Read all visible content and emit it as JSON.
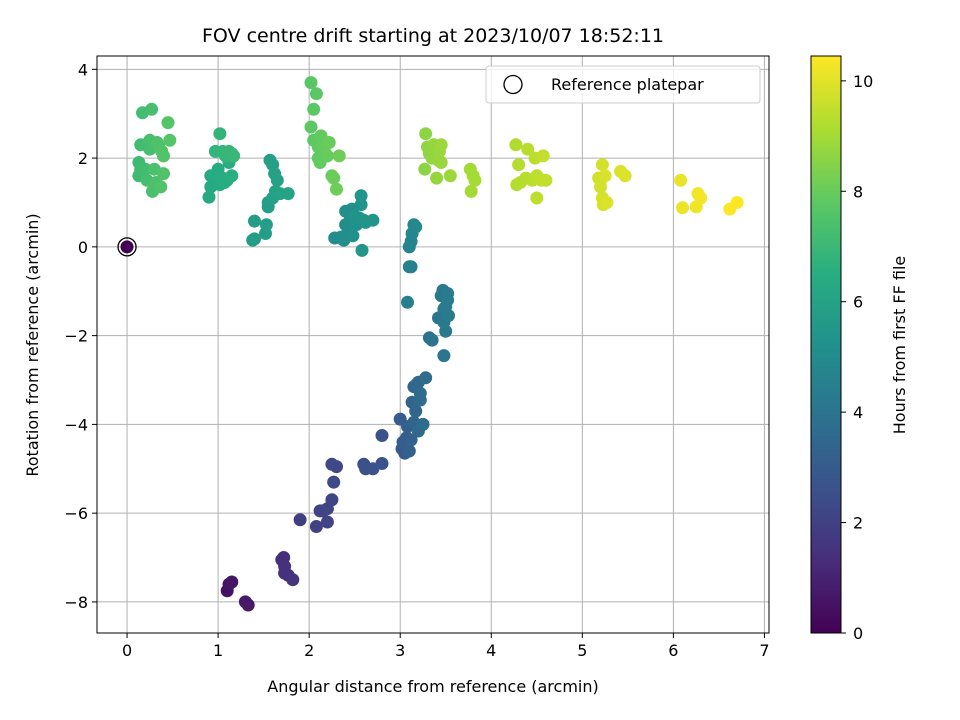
{
  "chart_data": {
    "type": "scatter",
    "title": "FOV centre drift starting at 2023/10/07 18:52:11",
    "xlabel": "Angular distance from reference (arcmin)",
    "ylabel": "Rotation from reference (arcmin)",
    "xlim": [
      -0.33,
      7.05
    ],
    "ylim": [
      -8.7,
      4.3
    ],
    "xticks": [
      0,
      1,
      2,
      3,
      4,
      5,
      6,
      7
    ],
    "yticks": [
      -8,
      -6,
      -4,
      -2,
      0,
      2,
      4
    ],
    "xtick_labels": [
      "0",
      "1",
      "2",
      "3",
      "4",
      "5",
      "6",
      "7"
    ],
    "ytick_labels": [
      "−8",
      "−6",
      "−4",
      "−2",
      "0",
      "2",
      "4"
    ],
    "grid": true,
    "legend": {
      "placement": "top-right",
      "entries": [
        "Reference platepar"
      ]
    },
    "reference_point": {
      "x": 0,
      "y": 0,
      "label": "Reference platepar"
    },
    "colorbar": {
      "label": "Hours from first FF file",
      "colormap": "viridis",
      "range": [
        0,
        10.45
      ],
      "ticks": [
        0,
        2,
        4,
        6,
        8,
        10
      ],
      "tick_labels": [
        "0",
        "2",
        "4",
        "6",
        "8",
        "10"
      ]
    },
    "points": [
      {
        "x": 0.0,
        "y": 0.0,
        "c": 0.0
      },
      {
        "x": 1.1,
        "y": -7.75,
        "c": 0.5
      },
      {
        "x": 1.12,
        "y": -7.6,
        "c": 0.55
      },
      {
        "x": 1.15,
        "y": -7.55,
        "c": 0.6
      },
      {
        "x": 1.3,
        "y": -8.0,
        "c": 0.7
      },
      {
        "x": 1.33,
        "y": -8.07,
        "c": 0.72
      },
      {
        "x": 1.7,
        "y": -7.05,
        "c": 1.4
      },
      {
        "x": 1.72,
        "y": -7.0,
        "c": 1.42
      },
      {
        "x": 1.73,
        "y": -7.2,
        "c": 1.45
      },
      {
        "x": 1.73,
        "y": -7.35,
        "c": 1.48
      },
      {
        "x": 1.77,
        "y": -7.4,
        "c": 1.5
      },
      {
        "x": 1.82,
        "y": -7.5,
        "c": 1.55
      },
      {
        "x": 1.9,
        "y": -6.15,
        "c": 1.9
      },
      {
        "x": 2.08,
        "y": -6.3,
        "c": 2.0
      },
      {
        "x": 2.12,
        "y": -5.95,
        "c": 2.05
      },
      {
        "x": 2.15,
        "y": -5.95,
        "c": 2.1
      },
      {
        "x": 2.2,
        "y": -6.2,
        "c": 2.12
      },
      {
        "x": 2.2,
        "y": -5.9,
        "c": 2.15
      },
      {
        "x": 2.25,
        "y": -5.7,
        "c": 2.2
      },
      {
        "x": 2.25,
        "y": -4.9,
        "c": 2.3
      },
      {
        "x": 2.3,
        "y": -4.95,
        "c": 2.32
      },
      {
        "x": 2.27,
        "y": -5.3,
        "c": 2.35
      },
      {
        "x": 2.6,
        "y": -4.9,
        "c": 2.5
      },
      {
        "x": 2.62,
        "y": -5.0,
        "c": 2.55
      },
      {
        "x": 2.7,
        "y": -5.0,
        "c": 2.6
      },
      {
        "x": 2.8,
        "y": -4.88,
        "c": 2.65
      },
      {
        "x": 2.8,
        "y": -4.25,
        "c": 2.7
      },
      {
        "x": 3.0,
        "y": -3.88,
        "c": 3.0
      },
      {
        "x": 3.02,
        "y": -4.55,
        "c": 2.9
      },
      {
        "x": 3.03,
        "y": -4.4,
        "c": 3.05
      },
      {
        "x": 3.05,
        "y": -4.65,
        "c": 2.95
      },
      {
        "x": 3.07,
        "y": -4.3,
        "c": 3.1
      },
      {
        "x": 3.08,
        "y": -4.05,
        "c": 3.15
      },
      {
        "x": 3.1,
        "y": -4.6,
        "c": 3.2
      },
      {
        "x": 3.12,
        "y": -4.35,
        "c": 3.25
      },
      {
        "x": 3.13,
        "y": -3.5,
        "c": 3.3
      },
      {
        "x": 3.15,
        "y": -3.15,
        "c": 3.35
      },
      {
        "x": 3.15,
        "y": -3.95,
        "c": 3.4
      },
      {
        "x": 3.17,
        "y": -3.7,
        "c": 3.42
      },
      {
        "x": 3.18,
        "y": -3.1,
        "c": 3.45
      },
      {
        "x": 3.2,
        "y": -3.05,
        "c": 3.5
      },
      {
        "x": 3.2,
        "y": -4.15,
        "c": 3.55
      },
      {
        "x": 3.22,
        "y": -3.45,
        "c": 3.6
      },
      {
        "x": 3.22,
        "y": -3.3,
        "c": 3.62
      },
      {
        "x": 3.25,
        "y": -4.0,
        "c": 3.65
      },
      {
        "x": 3.28,
        "y": -2.95,
        "c": 3.7
      },
      {
        "x": 3.32,
        "y": -2.05,
        "c": 3.9
      },
      {
        "x": 3.35,
        "y": -2.1,
        "c": 3.95
      },
      {
        "x": 3.42,
        "y": -1.6,
        "c": 4.0
      },
      {
        "x": 3.45,
        "y": -1.1,
        "c": 4.1
      },
      {
        "x": 3.47,
        "y": -0.98,
        "c": 4.15
      },
      {
        "x": 3.48,
        "y": -1.4,
        "c": 4.2
      },
      {
        "x": 3.48,
        "y": -1.7,
        "c": 4.22
      },
      {
        "x": 3.5,
        "y": -1.9,
        "c": 4.25
      },
      {
        "x": 3.5,
        "y": -1.35,
        "c": 4.28
      },
      {
        "x": 3.52,
        "y": -1.05,
        "c": 4.3
      },
      {
        "x": 3.52,
        "y": -1.2,
        "c": 4.32
      },
      {
        "x": 3.53,
        "y": -1.55,
        "c": 4.35
      },
      {
        "x": 3.48,
        "y": -2.45,
        "c": 4.05
      },
      {
        "x": 3.08,
        "y": -1.25,
        "c": 4.5
      },
      {
        "x": 3.1,
        "y": -0.45,
        "c": 4.55
      },
      {
        "x": 3.12,
        "y": -0.45,
        "c": 4.6
      },
      {
        "x": 3.1,
        "y": 0.0,
        "c": 4.65
      },
      {
        "x": 3.12,
        "y": 0.12,
        "c": 4.7
      },
      {
        "x": 3.13,
        "y": 0.3,
        "c": 4.75
      },
      {
        "x": 3.15,
        "y": 0.5,
        "c": 4.8
      },
      {
        "x": 3.17,
        "y": 0.45,
        "c": 4.85
      },
      {
        "x": 2.28,
        "y": 0.2,
        "c": 5.0
      },
      {
        "x": 2.35,
        "y": 0.22,
        "c": 5.05
      },
      {
        "x": 2.38,
        "y": 0.15,
        "c": 5.08
      },
      {
        "x": 2.4,
        "y": 0.5,
        "c": 5.1
      },
      {
        "x": 2.4,
        "y": 0.8,
        "c": 5.12
      },
      {
        "x": 2.42,
        "y": 0.3,
        "c": 5.15
      },
      {
        "x": 2.45,
        "y": 0.6,
        "c": 5.18
      },
      {
        "x": 2.47,
        "y": 0.85,
        "c": 5.2
      },
      {
        "x": 2.48,
        "y": 0.25,
        "c": 5.22
      },
      {
        "x": 2.5,
        "y": 0.7,
        "c": 5.25
      },
      {
        "x": 2.52,
        "y": 0.5,
        "c": 5.28
      },
      {
        "x": 2.55,
        "y": 0.65,
        "c": 5.3
      },
      {
        "x": 2.57,
        "y": 0.95,
        "c": 5.32
      },
      {
        "x": 2.57,
        "y": 1.15,
        "c": 5.35
      },
      {
        "x": 2.6,
        "y": 0.6,
        "c": 5.38
      },
      {
        "x": 2.62,
        "y": 0.55,
        "c": 5.4
      },
      {
        "x": 2.7,
        "y": 0.6,
        "c": 5.42
      },
      {
        "x": 2.58,
        "y": -0.08,
        "c": 5.45
      },
      {
        "x": 1.38,
        "y": 0.15,
        "c": 5.7
      },
      {
        "x": 1.4,
        "y": 0.58,
        "c": 5.72
      },
      {
        "x": 1.4,
        "y": 0.18,
        "c": 5.75
      },
      {
        "x": 1.52,
        "y": 0.3,
        "c": 5.78
      },
      {
        "x": 1.53,
        "y": 0.5,
        "c": 5.8
      },
      {
        "x": 1.55,
        "y": 0.9,
        "c": 5.82
      },
      {
        "x": 1.55,
        "y": 1.0,
        "c": 5.85
      },
      {
        "x": 1.57,
        "y": 1.95,
        "c": 5.88
      },
      {
        "x": 1.6,
        "y": 1.1,
        "c": 5.9
      },
      {
        "x": 1.6,
        "y": 1.85,
        "c": 5.92
      },
      {
        "x": 1.62,
        "y": 1.65,
        "c": 5.95
      },
      {
        "x": 1.63,
        "y": 1.25,
        "c": 5.98
      },
      {
        "x": 1.65,
        "y": 1.5,
        "c": 6.0
      },
      {
        "x": 1.68,
        "y": 1.2,
        "c": 6.02
      },
      {
        "x": 1.77,
        "y": 1.2,
        "c": 6.05
      },
      {
        "x": 0.9,
        "y": 1.12,
        "c": 6.3
      },
      {
        "x": 0.92,
        "y": 1.35,
        "c": 6.32
      },
      {
        "x": 0.92,
        "y": 1.6,
        "c": 6.35
      },
      {
        "x": 0.97,
        "y": 1.6,
        "c": 6.38
      },
      {
        "x": 1.0,
        "y": 1.75,
        "c": 6.4
      },
      {
        "x": 1.02,
        "y": 1.4,
        "c": 6.42
      },
      {
        "x": 1.05,
        "y": 1.55,
        "c": 6.45
      },
      {
        "x": 1.07,
        "y": 1.45,
        "c": 6.48
      },
      {
        "x": 1.1,
        "y": 1.5,
        "c": 6.5
      },
      {
        "x": 1.12,
        "y": 1.9,
        "c": 6.52
      },
      {
        "x": 1.15,
        "y": 1.6,
        "c": 6.55
      },
      {
        "x": 0.97,
        "y": 2.15,
        "c": 6.8
      },
      {
        "x": 1.02,
        "y": 2.55,
        "c": 6.82
      },
      {
        "x": 1.05,
        "y": 2.15,
        "c": 6.85
      },
      {
        "x": 1.08,
        "y": 2.05,
        "c": 6.88
      },
      {
        "x": 1.12,
        "y": 2.15,
        "c": 6.9
      },
      {
        "x": 1.15,
        "y": 2.1,
        "c": 6.92
      },
      {
        "x": 1.17,
        "y": 2.05,
        "c": 6.95
      },
      {
        "x": 0.13,
        "y": 1.6,
        "c": 7.1
      },
      {
        "x": 0.13,
        "y": 1.9,
        "c": 7.12
      },
      {
        "x": 0.15,
        "y": 1.75,
        "c": 7.15
      },
      {
        "x": 0.15,
        "y": 2.3,
        "c": 7.18
      },
      {
        "x": 0.17,
        "y": 3.02,
        "c": 7.2
      },
      {
        "x": 0.2,
        "y": 1.75,
        "c": 7.22
      },
      {
        "x": 0.22,
        "y": 1.5,
        "c": 7.25
      },
      {
        "x": 0.25,
        "y": 2.2,
        "c": 7.28
      },
      {
        "x": 0.25,
        "y": 2.4,
        "c": 7.3
      },
      {
        "x": 0.27,
        "y": 3.1,
        "c": 7.32
      },
      {
        "x": 0.28,
        "y": 1.25,
        "c": 7.35
      },
      {
        "x": 0.3,
        "y": 1.75,
        "c": 7.38
      },
      {
        "x": 0.32,
        "y": 1.45,
        "c": 7.4
      },
      {
        "x": 0.33,
        "y": 2.35,
        "c": 7.42
      },
      {
        "x": 0.35,
        "y": 2.25,
        "c": 7.45
      },
      {
        "x": 0.37,
        "y": 1.35,
        "c": 7.48
      },
      {
        "x": 0.38,
        "y": 2.15,
        "c": 7.5
      },
      {
        "x": 0.4,
        "y": 1.65,
        "c": 7.52
      },
      {
        "x": 0.4,
        "y": 2.05,
        "c": 7.55
      },
      {
        "x": 0.45,
        "y": 2.8,
        "c": 7.58
      },
      {
        "x": 0.47,
        "y": 2.4,
        "c": 7.6
      },
      {
        "x": 2.02,
        "y": 3.7,
        "c": 7.7
      },
      {
        "x": 2.05,
        "y": 3.1,
        "c": 7.72
      },
      {
        "x": 2.08,
        "y": 3.45,
        "c": 7.75
      },
      {
        "x": 2.02,
        "y": 2.7,
        "c": 7.78
      },
      {
        "x": 2.05,
        "y": 2.4,
        "c": 7.8
      },
      {
        "x": 2.1,
        "y": 2.25,
        "c": 7.82
      },
      {
        "x": 2.1,
        "y": 2.0,
        "c": 7.85
      },
      {
        "x": 2.12,
        "y": 1.9,
        "c": 7.88
      },
      {
        "x": 2.13,
        "y": 2.5,
        "c": 7.9
      },
      {
        "x": 2.15,
        "y": 2.3,
        "c": 7.92
      },
      {
        "x": 2.18,
        "y": 2.1,
        "c": 7.95
      },
      {
        "x": 2.2,
        "y": 2.05,
        "c": 7.98
      },
      {
        "x": 2.22,
        "y": 2.35,
        "c": 8.0
      },
      {
        "x": 2.25,
        "y": 1.6,
        "c": 8.02
      },
      {
        "x": 2.27,
        "y": 1.55,
        "c": 8.05
      },
      {
        "x": 2.3,
        "y": 1.3,
        "c": 8.08
      },
      {
        "x": 2.33,
        "y": 2.05,
        "c": 8.1
      },
      {
        "x": 3.27,
        "y": 1.75,
        "c": 8.6
      },
      {
        "x": 3.28,
        "y": 2.55,
        "c": 8.62
      },
      {
        "x": 3.3,
        "y": 2.25,
        "c": 8.65
      },
      {
        "x": 3.32,
        "y": 2.1,
        "c": 8.68
      },
      {
        "x": 3.35,
        "y": 2.0,
        "c": 8.7
      },
      {
        "x": 3.37,
        "y": 2.3,
        "c": 8.72
      },
      {
        "x": 3.4,
        "y": 1.55,
        "c": 8.75
      },
      {
        "x": 3.42,
        "y": 1.95,
        "c": 8.78
      },
      {
        "x": 3.43,
        "y": 2.15,
        "c": 8.8
      },
      {
        "x": 3.45,
        "y": 1.9,
        "c": 8.82
      },
      {
        "x": 3.45,
        "y": 2.3,
        "c": 8.85
      },
      {
        "x": 3.55,
        "y": 1.6,
        "c": 8.88
      },
      {
        "x": 3.77,
        "y": 1.75,
        "c": 8.95
      },
      {
        "x": 3.78,
        "y": 1.25,
        "c": 8.98
      },
      {
        "x": 3.8,
        "y": 1.6,
        "c": 9.0
      },
      {
        "x": 3.82,
        "y": 1.5,
        "c": 9.02
      },
      {
        "x": 4.27,
        "y": 2.3,
        "c": 9.2
      },
      {
        "x": 4.28,
        "y": 1.4,
        "c": 9.22
      },
      {
        "x": 4.3,
        "y": 1.85,
        "c": 9.25
      },
      {
        "x": 4.32,
        "y": 1.45,
        "c": 9.28
      },
      {
        "x": 4.38,
        "y": 1.55,
        "c": 9.3
      },
      {
        "x": 4.4,
        "y": 2.2,
        "c": 9.32
      },
      {
        "x": 4.45,
        "y": 1.5,
        "c": 9.35
      },
      {
        "x": 4.48,
        "y": 2.0,
        "c": 9.38
      },
      {
        "x": 4.5,
        "y": 1.6,
        "c": 9.4
      },
      {
        "x": 4.5,
        "y": 1.1,
        "c": 9.42
      },
      {
        "x": 4.55,
        "y": 1.5,
        "c": 9.45
      },
      {
        "x": 4.57,
        "y": 2.05,
        "c": 9.48
      },
      {
        "x": 4.6,
        "y": 1.5,
        "c": 9.5
      },
      {
        "x": 5.18,
        "y": 1.55,
        "c": 9.7
      },
      {
        "x": 5.2,
        "y": 1.5,
        "c": 9.72
      },
      {
        "x": 5.2,
        "y": 1.35,
        "c": 9.75
      },
      {
        "x": 5.22,
        "y": 1.85,
        "c": 9.78
      },
      {
        "x": 5.22,
        "y": 1.1,
        "c": 9.8
      },
      {
        "x": 5.23,
        "y": 0.95,
        "c": 9.82
      },
      {
        "x": 5.25,
        "y": 1.6,
        "c": 9.85
      },
      {
        "x": 5.27,
        "y": 1.0,
        "c": 9.88
      },
      {
        "x": 5.42,
        "y": 1.7,
        "c": 9.9
      },
      {
        "x": 5.47,
        "y": 1.6,
        "c": 9.92
      },
      {
        "x": 6.08,
        "y": 1.5,
        "c": 10.1
      },
      {
        "x": 6.1,
        "y": 0.88,
        "c": 10.15
      },
      {
        "x": 6.25,
        "y": 0.9,
        "c": 10.2
      },
      {
        "x": 6.27,
        "y": 1.2,
        "c": 10.25
      },
      {
        "x": 6.3,
        "y": 1.1,
        "c": 10.3
      },
      {
        "x": 6.62,
        "y": 0.85,
        "c": 10.4
      },
      {
        "x": 6.7,
        "y": 1.0,
        "c": 10.45
      }
    ]
  }
}
